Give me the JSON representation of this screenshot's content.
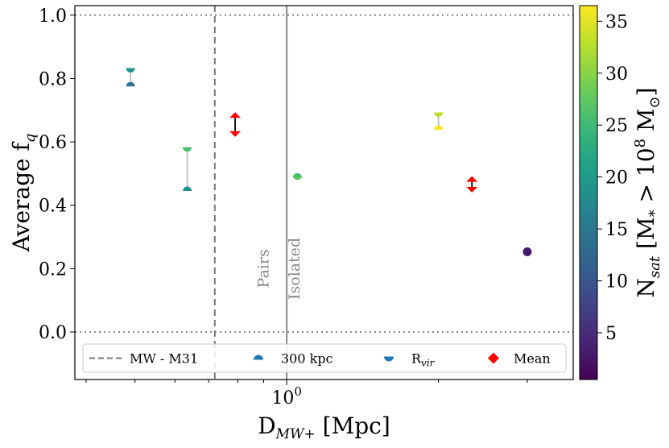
{
  "chart_data": {
    "type": "scatter",
    "xlabel": "D",
    "xlabel_sub": "MW+",
    "xlabel_unit": " [Mpc]",
    "ylabel": "Average f",
    "ylabel_sub": "q",
    "x_scale": "log",
    "xlim": [
      0.38,
      3.7
    ],
    "ylim": [
      -0.15,
      1.03
    ],
    "x_ticks": [
      {
        "value": 1.0,
        "label": "10",
        "sup": "0"
      }
    ],
    "y_ticks": [
      {
        "value": 0.0,
        "label": "0.0"
      },
      {
        "value": 0.2,
        "label": "0.2"
      },
      {
        "value": 0.4,
        "label": "0.4"
      },
      {
        "value": 0.6,
        "label": "0.6"
      },
      {
        "value": 0.8,
        "label": "0.8"
      },
      {
        "value": 1.0,
        "label": "1.0"
      }
    ],
    "hlines": [
      0.0,
      1.0
    ],
    "vlines": [
      {
        "x": 0.72,
        "style": "dashed",
        "label": "MW - M31"
      },
      {
        "x": 1.0,
        "style": "solid"
      }
    ],
    "annotations": [
      {
        "text": "Pairs",
        "x": 0.92,
        "y": 0.2
      },
      {
        "text": "Isolated",
        "x": 1.06,
        "y": 0.2
      }
    ],
    "points": [
      {
        "x": 0.49,
        "f_300kpc": 0.775,
        "f_rvir": 0.833,
        "n_300kpc": 14,
        "n_rvir": 19,
        "mean": null
      },
      {
        "x": 0.635,
        "f_300kpc": 0.445,
        "f_rvir": 0.583,
        "n_300kpc": 19,
        "n_rvir": 26,
        "mean": null
      },
      {
        "x": 0.79,
        "f_300kpc": null,
        "f_rvir": null,
        "n_300kpc": null,
        "n_rvir": null,
        "mean": 0.655,
        "mean_up": 0.676,
        "mean_down": 0.634
      },
      {
        "x": 1.05,
        "f_300kpc": 0.487,
        "f_rvir": 0.494,
        "n_300kpc": 25,
        "n_rvir": 27,
        "mean": null
      },
      {
        "x": 2.0,
        "f_300kpc": 0.638,
        "f_rvir": 0.693,
        "n_300kpc": 36,
        "n_rvir": 33,
        "mean": null
      },
      {
        "x": 2.33,
        "f_300kpc": null,
        "f_rvir": null,
        "n_300kpc": null,
        "n_rvir": null,
        "mean": 0.467,
        "mean_up": 0.474,
        "mean_down": 0.458
      },
      {
        "x": 3.0,
        "f_300kpc": 0.253,
        "f_rvir": 0.253,
        "n_300kpc": 3,
        "n_rvir": 3,
        "mean": null
      }
    ],
    "legend": [
      {
        "label": "MW - M31",
        "marker": "dashed-line"
      },
      {
        "label": "300 kpc",
        "marker": "upper-half-circle"
      },
      {
        "label": "R",
        "label_sub": "vir",
        "marker": "lower-half-circle"
      },
      {
        "label": "Mean",
        "marker": "diamond"
      }
    ],
    "legend_position": "lower-center",
    "colorbar": {
      "label": "N",
      "label_sub": "sat",
      "label_mid": " [M",
      "label_mid_sub": "*",
      "label_cmp": " > 10",
      "label_exp": "8",
      "label_unit": " M",
      "label_unit_sub": "⊙",
      "label_end": "]",
      "colormap": "viridis",
      "range": [
        0.5,
        36.5
      ],
      "ticks": [
        {
          "value": 5,
          "label": "5"
        },
        {
          "value": 10,
          "label": "10"
        },
        {
          "value": 15,
          "label": "15"
        },
        {
          "value": 20,
          "label": "20"
        },
        {
          "value": 25,
          "label": "25"
        },
        {
          "value": 30,
          "label": "30"
        },
        {
          "value": 35,
          "label": "35"
        }
      ]
    },
    "colors": {
      "mean": "#ff0000",
      "connector": "#bbbbbb",
      "mean_connector": "#000000",
      "vline_dashed": "#777777",
      "vline_solid": "#888888",
      "hline": "#888888",
      "legend_half_circle": "#1f77b4"
    }
  }
}
